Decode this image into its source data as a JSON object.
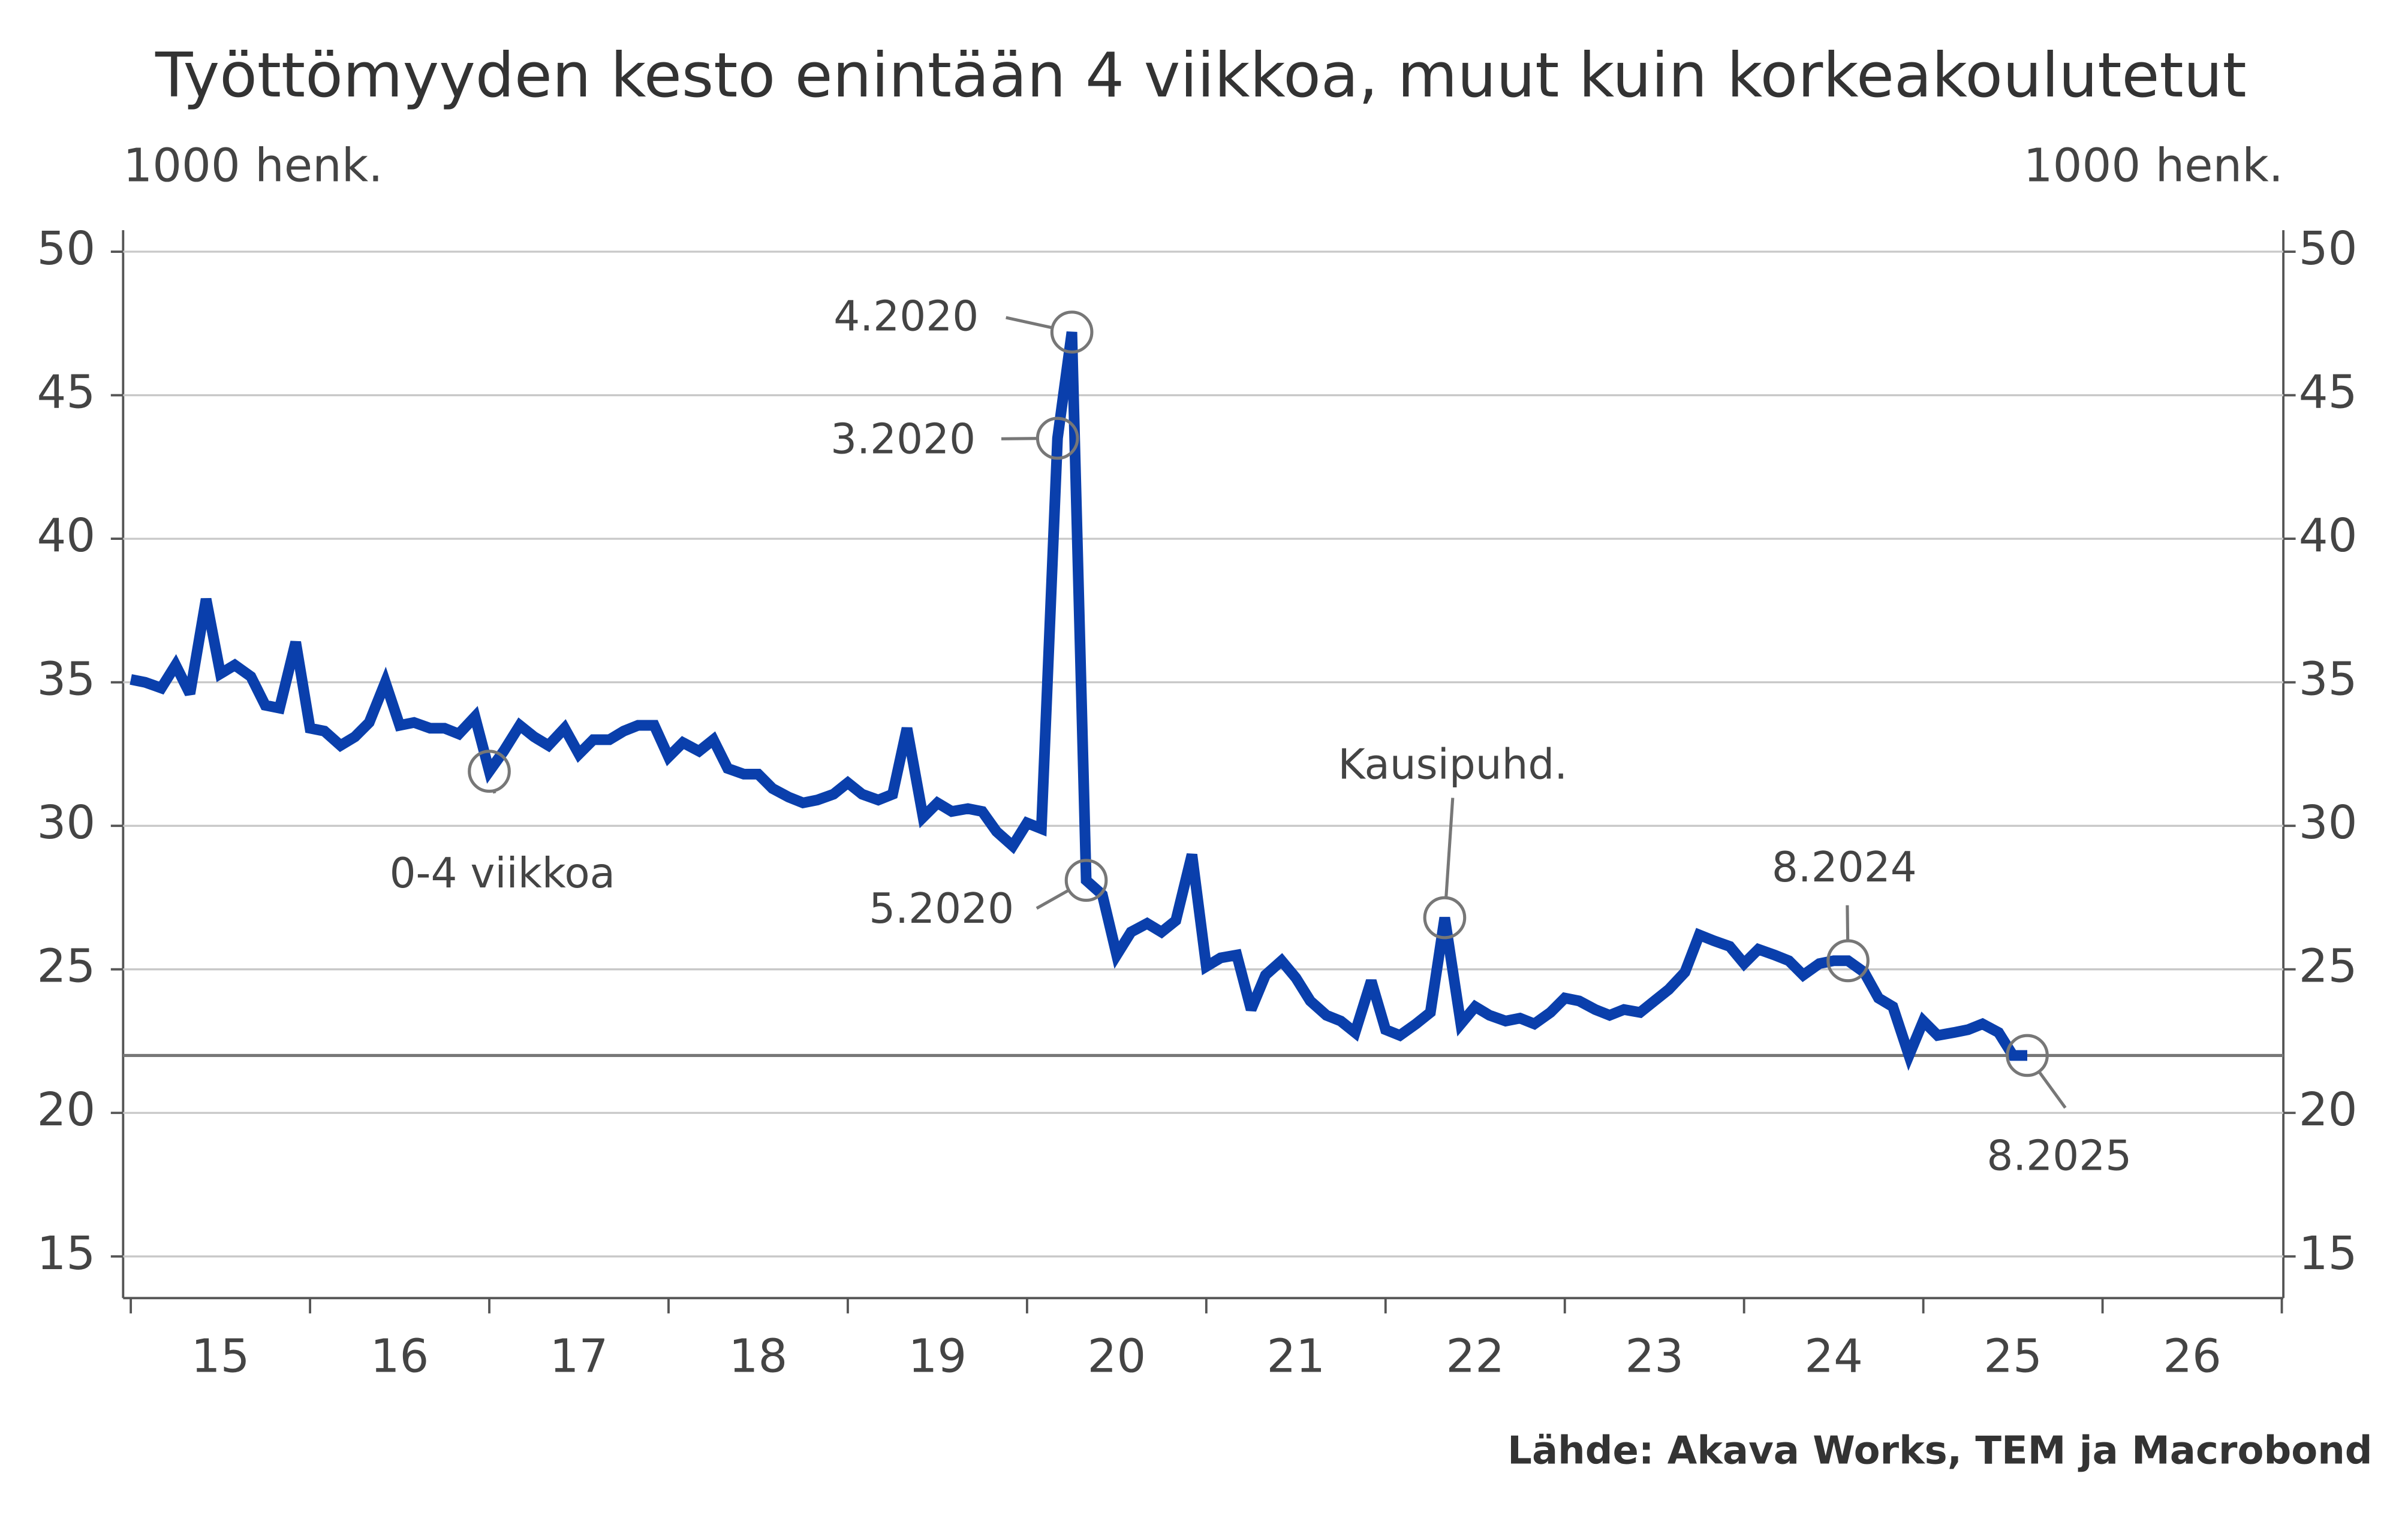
{
  "chart_data": {
    "type": "line",
    "title": "Työttömyyden kesto enintään 4 viikkoa, muut kuin korkeakoulutetut",
    "y_label": "1000 henk.",
    "y2_label": "1000 henk.",
    "source": "Lähde: Akava Works, TEM ja Macrobond",
    "x": [
      15,
      15.08,
      15.17,
      15.25,
      15.33,
      15.42,
      15.5,
      15.58,
      15.67,
      15.75,
      15.83,
      15.92,
      16,
      16.08,
      16.17,
      16.25,
      16.33,
      16.42,
      16.5,
      16.58,
      16.67,
      16.75,
      16.83,
      16.92,
      17,
      17.08,
      17.17,
      17.25,
      17.33,
      17.42,
      17.5,
      17.58,
      17.67,
      17.75,
      17.83,
      17.92,
      18,
      18.08,
      18.17,
      18.25,
      18.33,
      18.42,
      18.5,
      18.58,
      18.67,
      18.75,
      18.83,
      18.92,
      19,
      19.08,
      19.17,
      19.25,
      19.33,
      19.42,
      19.5,
      19.58,
      19.67,
      19.75,
      19.83,
      19.92,
      20,
      20.08,
      20.17,
      20.25,
      20.33,
      20.42,
      20.5,
      20.58,
      20.67,
      20.75,
      20.83,
      20.92,
      21,
      21.08,
      21.17,
      21.25,
      21.33,
      21.42,
      21.5,
      21.58,
      21.67,
      21.75,
      21.83,
      21.92,
      22,
      22.08,
      22.17,
      22.25,
      22.33,
      22.42,
      22.5,
      22.58,
      22.67,
      22.75,
      22.83,
      22.92,
      23,
      23.08,
      23.17,
      23.25,
      23.33,
      23.42,
      23.5,
      23.58,
      23.67,
      23.75,
      23.83,
      23.92,
      24,
      24.08,
      24.17,
      24.25,
      24.33,
      24.42,
      24.5,
      24.58,
      24.67,
      24.75,
      24.83,
      24.92,
      25,
      25.08,
      25.17,
      25.25,
      25.33,
      25.42,
      25.5,
      25.58
    ],
    "series": [
      {
        "name": "0-4 viikkoa",
        "color": "#0a3fac",
        "values": [
          35.1,
          35.0,
          34.8,
          35.6,
          34.6,
          37.9,
          35.3,
          35.6,
          35.2,
          34.2,
          34.1,
          36.4,
          33.4,
          33.3,
          32.8,
          33.1,
          33.6,
          35.0,
          33.5,
          33.6,
          33.4,
          33.4,
          33.2,
          33.8,
          31.9,
          32.6,
          33.5,
          33.1,
          32.8,
          33.4,
          32.5,
          33.0,
          33.0,
          33.3,
          33.5,
          33.5,
          32.4,
          32.9,
          32.6,
          33.0,
          32.0,
          31.8,
          31.8,
          31.3,
          31.0,
          30.8,
          30.9,
          31.1,
          31.5,
          31.1,
          30.9,
          31.1,
          33.4,
          30.3,
          30.8,
          30.5,
          30.6,
          30.5,
          29.8,
          29.3,
          30.1,
          29.9,
          43.5,
          47.2,
          28.1,
          27.6,
          25.5,
          26.3,
          26.6,
          26.3,
          26.7,
          29.0,
          25.1,
          25.4,
          25.5,
          23.6,
          24.8,
          25.3,
          24.7,
          23.9,
          23.4,
          23.2,
          22.8,
          24.6,
          22.9,
          22.7,
          23.1,
          23.5,
          26.8,
          23.1,
          23.7,
          23.4,
          23.2,
          23.3,
          23.1,
          23.5,
          24.0,
          23.9,
          23.6,
          23.4,
          23.6,
          23.5,
          23.9,
          24.3,
          24.9,
          26.2,
          26.0,
          25.8,
          25.2,
          25.7,
          25.5,
          25.3,
          24.8,
          25.2,
          25.3,
          25.3,
          24.9,
          24.0,
          23.7,
          22.0,
          23.2,
          22.7,
          22.8,
          22.9,
          23.1,
          22.8,
          22.0,
          22.0
        ]
      }
    ],
    "xlim": [
      15,
      27
    ],
    "xticks": [
      15,
      16,
      17,
      18,
      19,
      20,
      21,
      22,
      23,
      24,
      25,
      26,
      27
    ],
    "xtick_labels": [
      {
        "value": 15.5,
        "label": "15"
      },
      {
        "value": 16.5,
        "label": "16"
      },
      {
        "value": 17.5,
        "label": "17"
      },
      {
        "value": 18.5,
        "label": "18"
      },
      {
        "value": 19.5,
        "label": "19"
      },
      {
        "value": 20.5,
        "label": "20"
      },
      {
        "value": 21.5,
        "label": "21"
      },
      {
        "value": 22.5,
        "label": "22"
      },
      {
        "value": 23.5,
        "label": "23"
      },
      {
        "value": 24.5,
        "label": "24"
      },
      {
        "value": 25.5,
        "label": "25"
      },
      {
        "value": 26.5,
        "label": "26"
      }
    ],
    "ylim": [
      13.55,
      50.75
    ],
    "yticks": [
      15,
      20,
      25,
      30,
      35,
      40,
      45,
      50
    ],
    "y2lim": [
      13.55,
      50.75
    ],
    "y2ticks": [
      15,
      20,
      25,
      30,
      35,
      40,
      45,
      50
    ],
    "hline": 22,
    "grid": true,
    "annotations": [
      "0-4 viikkoa",
      "3.2020",
      "4.2020",
      "5.2020",
      "Kausipuhd.",
      "8.2024",
      "8.2025"
    ]
  }
}
